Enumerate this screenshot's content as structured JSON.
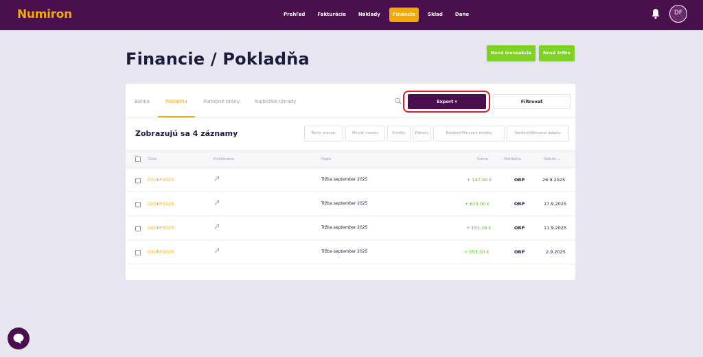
{
  "app": {
    "logo": "Numiron"
  },
  "nav": {
    "items": [
      {
        "label": "Prehľad",
        "active": false
      },
      {
        "label": "Fakturácia",
        "active": false
      },
      {
        "label": "Náklady",
        "active": false
      },
      {
        "label": "Financie",
        "active": true
      },
      {
        "label": "Sklad",
        "active": false
      },
      {
        "label": "Dane",
        "active": false
      }
    ],
    "avatar_initials": "DF"
  },
  "header": {
    "title": "Financie / Pokladňa",
    "new_transaction_label": "Nová transakcia",
    "new_revenue_label": "Nová tržba"
  },
  "tabs": [
    {
      "label": "Banka",
      "active": false
    },
    {
      "label": "Pokladňa",
      "active": true
    },
    {
      "label": "Platobné brány",
      "active": false
    },
    {
      "label": "Najbližšie úhrady",
      "active": false
    }
  ],
  "toolbar": {
    "export_label": "Export ▾",
    "filter_label": "Filtrovať"
  },
  "list": {
    "count_label": "Zobrazujú sa 4 záznamy",
    "chips": [
      "Tento mesiac",
      "Minulý mesiac",
      "Kredity",
      "Debety",
      "Neidentifikované kredity",
      "Neidentifikované debety"
    ],
    "columns": {
      "number": "Číslo",
      "counterparty": "Protistrana",
      "description": "Popis",
      "amount": "Suma",
      "register": "Pokladňa",
      "date": "Dátum ⌄"
    },
    "rows": [
      {
        "number": "01ORP2025",
        "description": "Tržba september 2025",
        "amount": "+ 147,60 €",
        "register": "ORP",
        "date": "26.9.2025"
      },
      {
        "number": "02ORP2025",
        "description": "Tržba september 2025",
        "amount": "+ 615,00 €",
        "register": "ORP",
        "date": "17.9.2025"
      },
      {
        "number": "04ORP2025",
        "description": "Tržba september 2025",
        "amount": "+ 151,29 €",
        "register": "ORP",
        "date": "11.9.2025"
      },
      {
        "number": "03ORP2025",
        "description": "Tržba september 2025",
        "amount": "+ 553,50 €",
        "register": "ORP",
        "date": "2.9.2025"
      }
    ]
  },
  "colors": {
    "brand_purple": "#4a0f4d",
    "accent_orange": "#f5a800",
    "green": "#7ed321",
    "highlight_red": "#d81e1e"
  }
}
